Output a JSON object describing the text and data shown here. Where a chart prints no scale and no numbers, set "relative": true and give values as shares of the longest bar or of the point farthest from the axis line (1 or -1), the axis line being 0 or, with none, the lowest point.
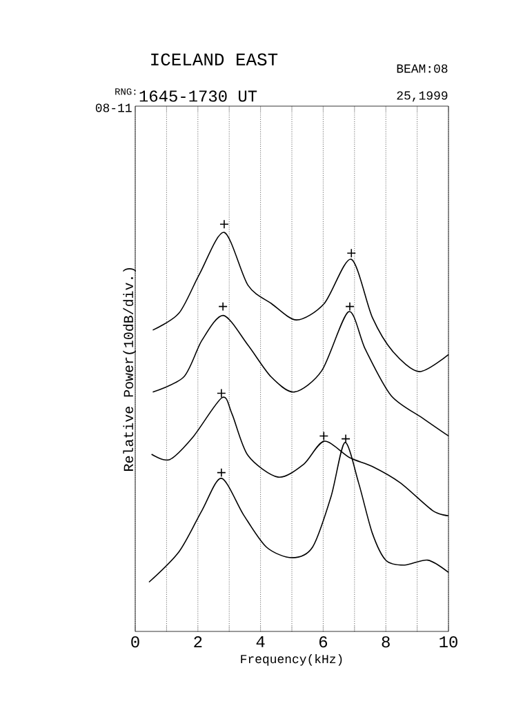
{
  "chart_data": {
    "type": "line",
    "title": "ICELAND EAST",
    "subtitle": "1645-1730 UT",
    "annotations": [
      "BEAM:08",
      "25,1999",
      "RNG:",
      "08-11"
    ],
    "xlabel": "Frequency(kHz)",
    "ylabel": "Relative Power(10dB/div.)",
    "relative": true,
    "grid": "x",
    "line_style": "solid",
    "marker": "none",
    "xlim": [
      0,
      10
    ],
    "xticks": [
      0,
      {
        "value": 1,
        "label": null
      },
      2,
      {
        "value": 3,
        "label": null
      },
      4,
      {
        "value": 5,
        "label": null
      },
      6,
      {
        "value": 7,
        "label": null
      },
      8,
      {
        "value": 9,
        "label": null
      },
      10
    ],
    "series": [
      {
        "color": "#000000",
        "x": [
          0.56,
          1.4,
          2.06,
          2.84,
          3.6,
          4.35,
          5.15,
          6.03,
          6.89,
          7.57,
          8.24,
          9.07,
          10
        ],
        "values": [
          0.74,
          0.782,
          0.879,
          0.98,
          0.85,
          0.805,
          0.765,
          0.805,
          0.914,
          0.771,
          0.686,
          0.638,
          0.68
        ]
      },
      {
        "color": "#000000",
        "x": [
          0.56,
          1.55,
          2.13,
          2.81,
          3.6,
          4.34,
          5.08,
          5.96,
          6.81,
          7.35,
          8.17,
          9.19,
          10
        ],
        "values": [
          0.588,
          0.625,
          0.715,
          0.776,
          0.703,
          0.625,
          0.588,
          0.641,
          0.785,
          0.692,
          0.579,
          0.523,
          0.48
        ]
      },
      {
        "color": "#000000",
        "x": [
          0.52,
          1.1,
          1.84,
          2.77,
          3.09,
          3.6,
          4.56,
          5.37,
          6.03,
          6.84,
          7.57,
          8.46,
          9.49,
          10
        ],
        "values": [
          0.435,
          0.422,
          0.477,
          0.574,
          0.534,
          0.432,
          0.379,
          0.41,
          0.467,
          0.427,
          0.405,
          0.365,
          0.297,
          0.284
        ]
      },
      {
        "color": "#000000",
        "x": [
          0.44,
          1.4,
          2.13,
          2.75,
          3.46,
          4.19,
          5.0,
          5.66,
          6.25,
          6.69,
          7.13,
          7.57,
          8.01,
          8.6,
          9.34,
          10
        ],
        "values": [
          0.121,
          0.196,
          0.297,
          0.376,
          0.286,
          0.207,
          0.181,
          0.207,
          0.331,
          0.464,
          0.365,
          0.241,
          0.174,
          0.163,
          0.175,
          0.145
        ]
      },
      {
        "type": "scatter",
        "marker": "cross",
        "color": "#000000",
        "x": [
          2.84,
          6.9,
          2.8,
          6.85,
          2.75,
          6.02,
          6.72,
          2.75
        ],
        "values": [
          1.0,
          0.929,
          0.798,
          0.798,
          0.585,
          0.48,
          0.473,
          0.39
        ]
      }
    ]
  }
}
